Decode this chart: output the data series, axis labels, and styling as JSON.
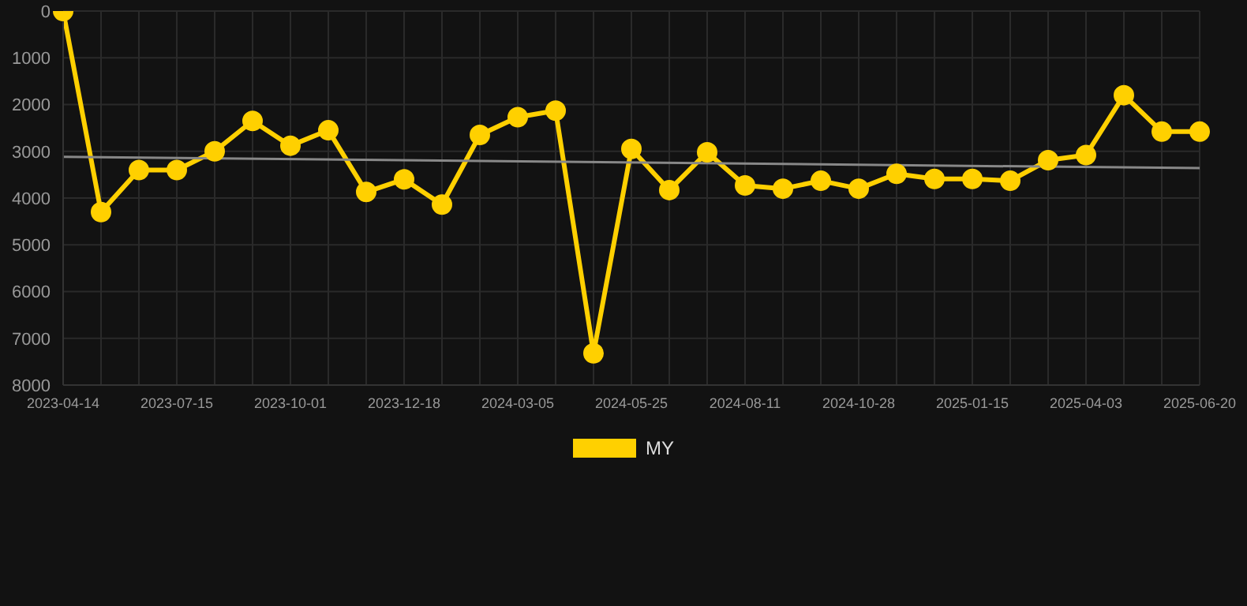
{
  "chart_data": {
    "type": "line",
    "categories": [
      "2023-04-14",
      null,
      null,
      "2023-07-15",
      null,
      null,
      "2023-10-01",
      null,
      null,
      "2023-12-18",
      null,
      null,
      "2024-03-05",
      null,
      null,
      "2024-05-25",
      null,
      null,
      "2024-08-11",
      null,
      null,
      "2024-10-28",
      null,
      null,
      "2025-01-15",
      null,
      null,
      "2025-04-03",
      null,
      null,
      "2025-06-20"
    ],
    "series": [
      {
        "name": "MY",
        "color": "#ffd000",
        "values": [
          0,
          4300,
          3400,
          3400,
          3000,
          2350,
          2880,
          2550,
          3870,
          3600,
          4140,
          2650,
          2270,
          2130,
          7320,
          2950,
          3830,
          3020,
          3730,
          3800,
          3630,
          3800,
          3480,
          3590,
          3590,
          3630,
          3190,
          3080,
          1800,
          2580,
          2580
        ]
      },
      {
        "type": "line",
        "color": "#888888",
        "marker": "none",
        "values": [
          3120,
          null,
          null,
          null,
          null,
          null,
          null,
          null,
          null,
          null,
          null,
          null,
          null,
          null,
          null,
          null,
          null,
          null,
          null,
          null,
          null,
          null,
          null,
          null,
          null,
          null,
          null,
          null,
          null,
          null,
          3360
        ]
      }
    ],
    "ylim": [
      8000,
      0
    ],
    "yticks": [
      0,
      1000,
      2000,
      3000,
      4000,
      5000,
      6000,
      7000,
      8000
    ],
    "grid": true,
    "legend": "bottom",
    "marker": "circle"
  }
}
